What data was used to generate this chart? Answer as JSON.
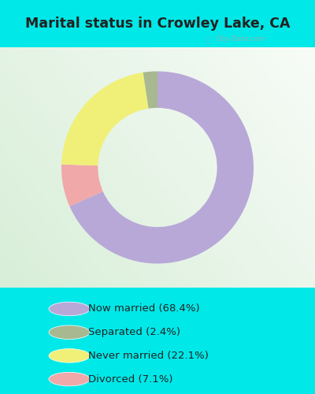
{
  "title": "Marital status in Crowley Lake, CA",
  "slices": [
    68.4,
    2.4,
    22.1,
    7.1
  ],
  "colors": [
    "#b8a8d8",
    "#a8b890",
    "#f0f078",
    "#f0a8a8"
  ],
  "labels": [
    "Now married (68.4%)",
    "Separated (2.4%)",
    "Never married (22.1%)",
    "Divorced (7.1%)"
  ],
  "legend_colors": [
    "#b8a8d8",
    "#a8b890",
    "#f0f078",
    "#f0a8a8"
  ],
  "bg_outer": "#00e8e8",
  "bg_chart_color": "#d8eed8",
  "title_color": "#222222",
  "watermark": "City-Data.com",
  "start_angle": 90,
  "wedge_order": [
    0,
    3,
    2,
    1
  ],
  "donut_width": 0.38
}
